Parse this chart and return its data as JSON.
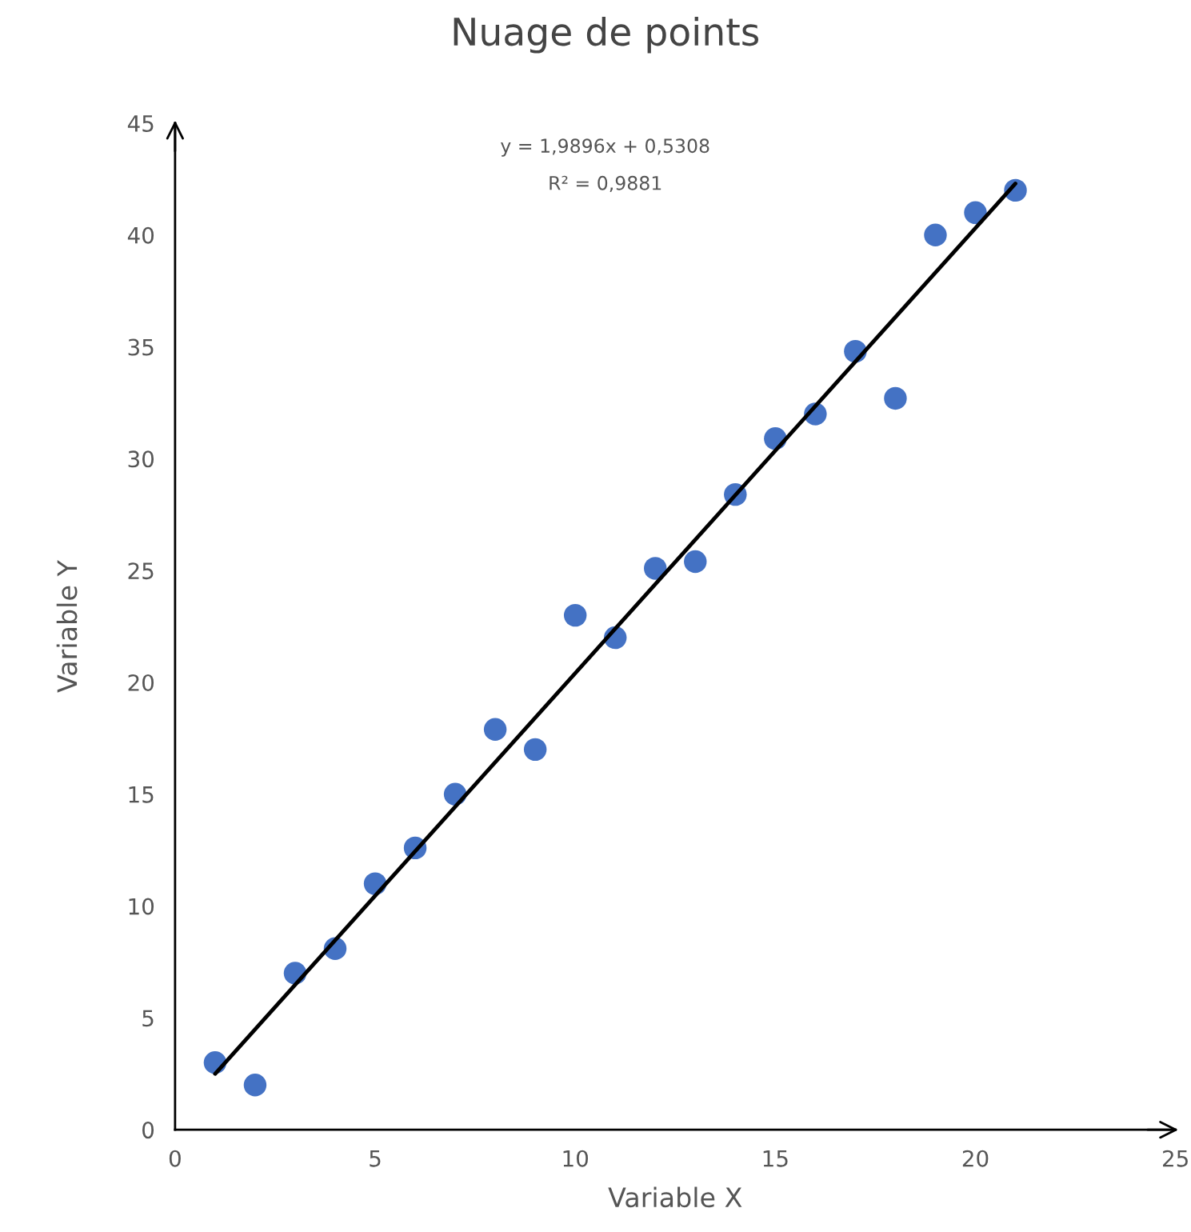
{
  "chart_data": {
    "type": "scatter",
    "title": "Nuage de points",
    "xlabel": "Variable X",
    "ylabel": "Variable Y",
    "annotations": [
      "y = 1,9896x + 0,5308",
      "R² = 0,9881"
    ],
    "x": [
      1,
      2,
      3,
      4,
      5,
      6,
      7,
      8,
      9,
      10,
      11,
      12,
      13,
      14,
      15,
      16,
      17,
      18,
      19,
      20,
      21
    ],
    "series": [
      {
        "color": "#4472c4",
        "marker": "circle",
        "values": [
          3,
          2,
          7,
          8.1,
          11,
          12.6,
          15,
          17.9,
          17,
          23,
          22,
          25.1,
          25.4,
          28.4,
          30.9,
          32,
          34.8,
          32.7,
          40,
          41,
          42
        ]
      },
      {
        "type": "line",
        "color": "#000000",
        "line_style": "solid",
        "x": [
          1,
          21
        ],
        "values": [
          2.5,
          42.3
        ]
      }
    ],
    "xlim": [
      0,
      25
    ],
    "ylim": [
      0,
      45
    ],
    "xticks": [
      0,
      5,
      10,
      15,
      20,
      25
    ],
    "yticks": [
      0,
      5,
      10,
      15,
      20,
      25,
      30,
      35,
      40,
      45
    ],
    "grid": false,
    "legend": false
  }
}
